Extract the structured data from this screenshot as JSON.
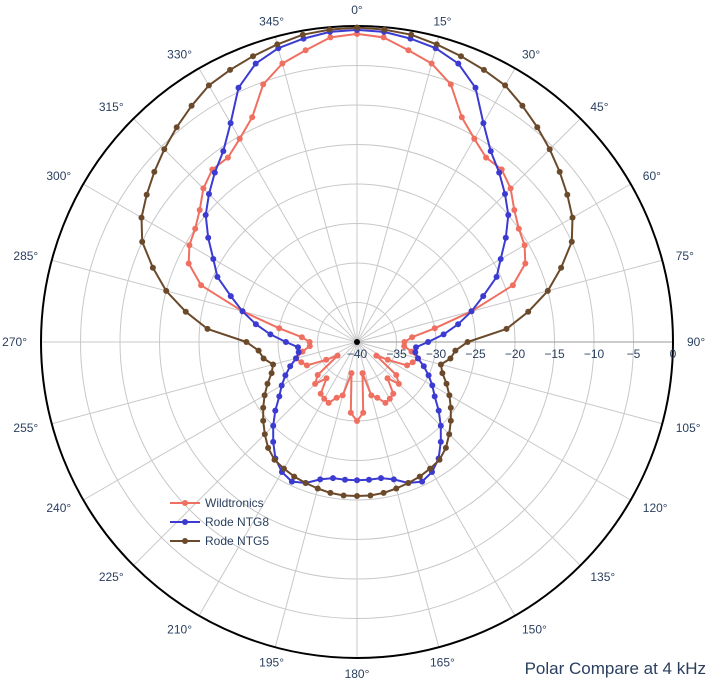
{
  "chart_data": {
    "type": "polar-line",
    "title": "Polar Compare at 4 kHz",
    "radial_axis": {
      "range": [
        -40,
        0
      ],
      "ticks": [
        -40,
        -35,
        -30,
        -25,
        -20,
        -15,
        -10,
        -5,
        0
      ],
      "tick_labels": [
        "−40",
        "−35",
        "−30",
        "−25",
        "−20",
        "−15",
        "−10",
        "−5",
        "0"
      ]
    },
    "angular_axis": {
      "direction": "clockwise",
      "rotation": "0° at top",
      "ticks": [
        0,
        15,
        30,
        45,
        60,
        75,
        90,
        105,
        120,
        135,
        150,
        165,
        180,
        195,
        210,
        225,
        240,
        255,
        270,
        285,
        300,
        315,
        330,
        345
      ],
      "tick_labels": [
        "0°",
        "15°",
        "30°",
        "45°",
        "60°",
        "75°",
        "90°",
        "105°",
        "120°",
        "135°",
        "150°",
        "165°",
        "180°",
        "195°",
        "210°",
        "225°",
        "240°",
        "255°",
        "270°",
        "285°",
        "300°",
        "315°",
        "330°",
        "345°"
      ]
    },
    "grid": true,
    "legend": {
      "position": "bottom-left"
    },
    "series": [
      {
        "name": "Wildtronics",
        "color": "#ef6f61",
        "theta": [
          0,
          5,
          10,
          15,
          20,
          25,
          30,
          35,
          40,
          45,
          50,
          55,
          60,
          65,
          70,
          75,
          80,
          85,
          90,
          95,
          100,
          105,
          110,
          115,
          120,
          125,
          130,
          135,
          140,
          145,
          150,
          155,
          160,
          165,
          170,
          175,
          180
        ],
        "r": [
          -1,
          -1.3,
          -2.5,
          -3.5,
          -5.3,
          -8.6,
          -10.3,
          -11.5,
          -11.5,
          -12.5,
          -14,
          -15,
          -15.5,
          -16.5,
          -19,
          -25,
          -30,
          -33,
          -34,
          -34,
          -33,
          -32,
          -32.5,
          -33,
          -35.5,
          -37,
          -33.5,
          -32.5,
          -34,
          -32,
          -31.7,
          -31.5,
          -32.5,
          -33,
          -36,
          -31,
          -30
        ]
      },
      {
        "name": "Rode NTG8",
        "color": "#3b3bd1",
        "theta": [
          0,
          5,
          10,
          15,
          20,
          25,
          30,
          35,
          40,
          45,
          50,
          55,
          60,
          65,
          70,
          75,
          80,
          85,
          90,
          95,
          100,
          105,
          110,
          115,
          120,
          125,
          130,
          135,
          140,
          145,
          150,
          155,
          160,
          165,
          170,
          175,
          180
        ],
        "r": [
          -0.5,
          -0.6,
          -1,
          -1.5,
          -2.5,
          -4.5,
          -8,
          -10.5,
          -12,
          -13.5,
          -15,
          -17,
          -19,
          -20.5,
          -23,
          -25,
          -27,
          -29,
          -31,
          -32.5,
          -32.5,
          -32,
          -31,
          -30,
          -29,
          -28,
          -26.5,
          -25,
          -23.5,
          -22,
          -21,
          -20.5,
          -21,
          -22,
          -22.5,
          -22.5,
          -22.5
        ]
      },
      {
        "name": "Rode NTG5",
        "color": "#6b4a2b",
        "theta": [
          0,
          5,
          10,
          15,
          20,
          25,
          30,
          35,
          40,
          45,
          50,
          55,
          60,
          65,
          70,
          75,
          80,
          85,
          90,
          95,
          100,
          105,
          110,
          115,
          120,
          125,
          130,
          135,
          140,
          145,
          150,
          155,
          160,
          165,
          170,
          175,
          180
        ],
        "r": [
          -0.2,
          -0.3,
          -0.5,
          -1,
          -1.5,
          -2,
          -2.5,
          -3.5,
          -4.5,
          -5.5,
          -6.5,
          -7.5,
          -8.5,
          -10,
          -12.5,
          -15,
          -18,
          -21,
          -26,
          -27.5,
          -28,
          -29,
          -28.5,
          -27.5,
          -26.5,
          -25.5,
          -24.5,
          -23.5,
          -22.5,
          -21.8,
          -21.5,
          -21.2,
          -21,
          -20.8,
          -20.6,
          -20.5,
          -20.5
        ]
      }
    ]
  }
}
